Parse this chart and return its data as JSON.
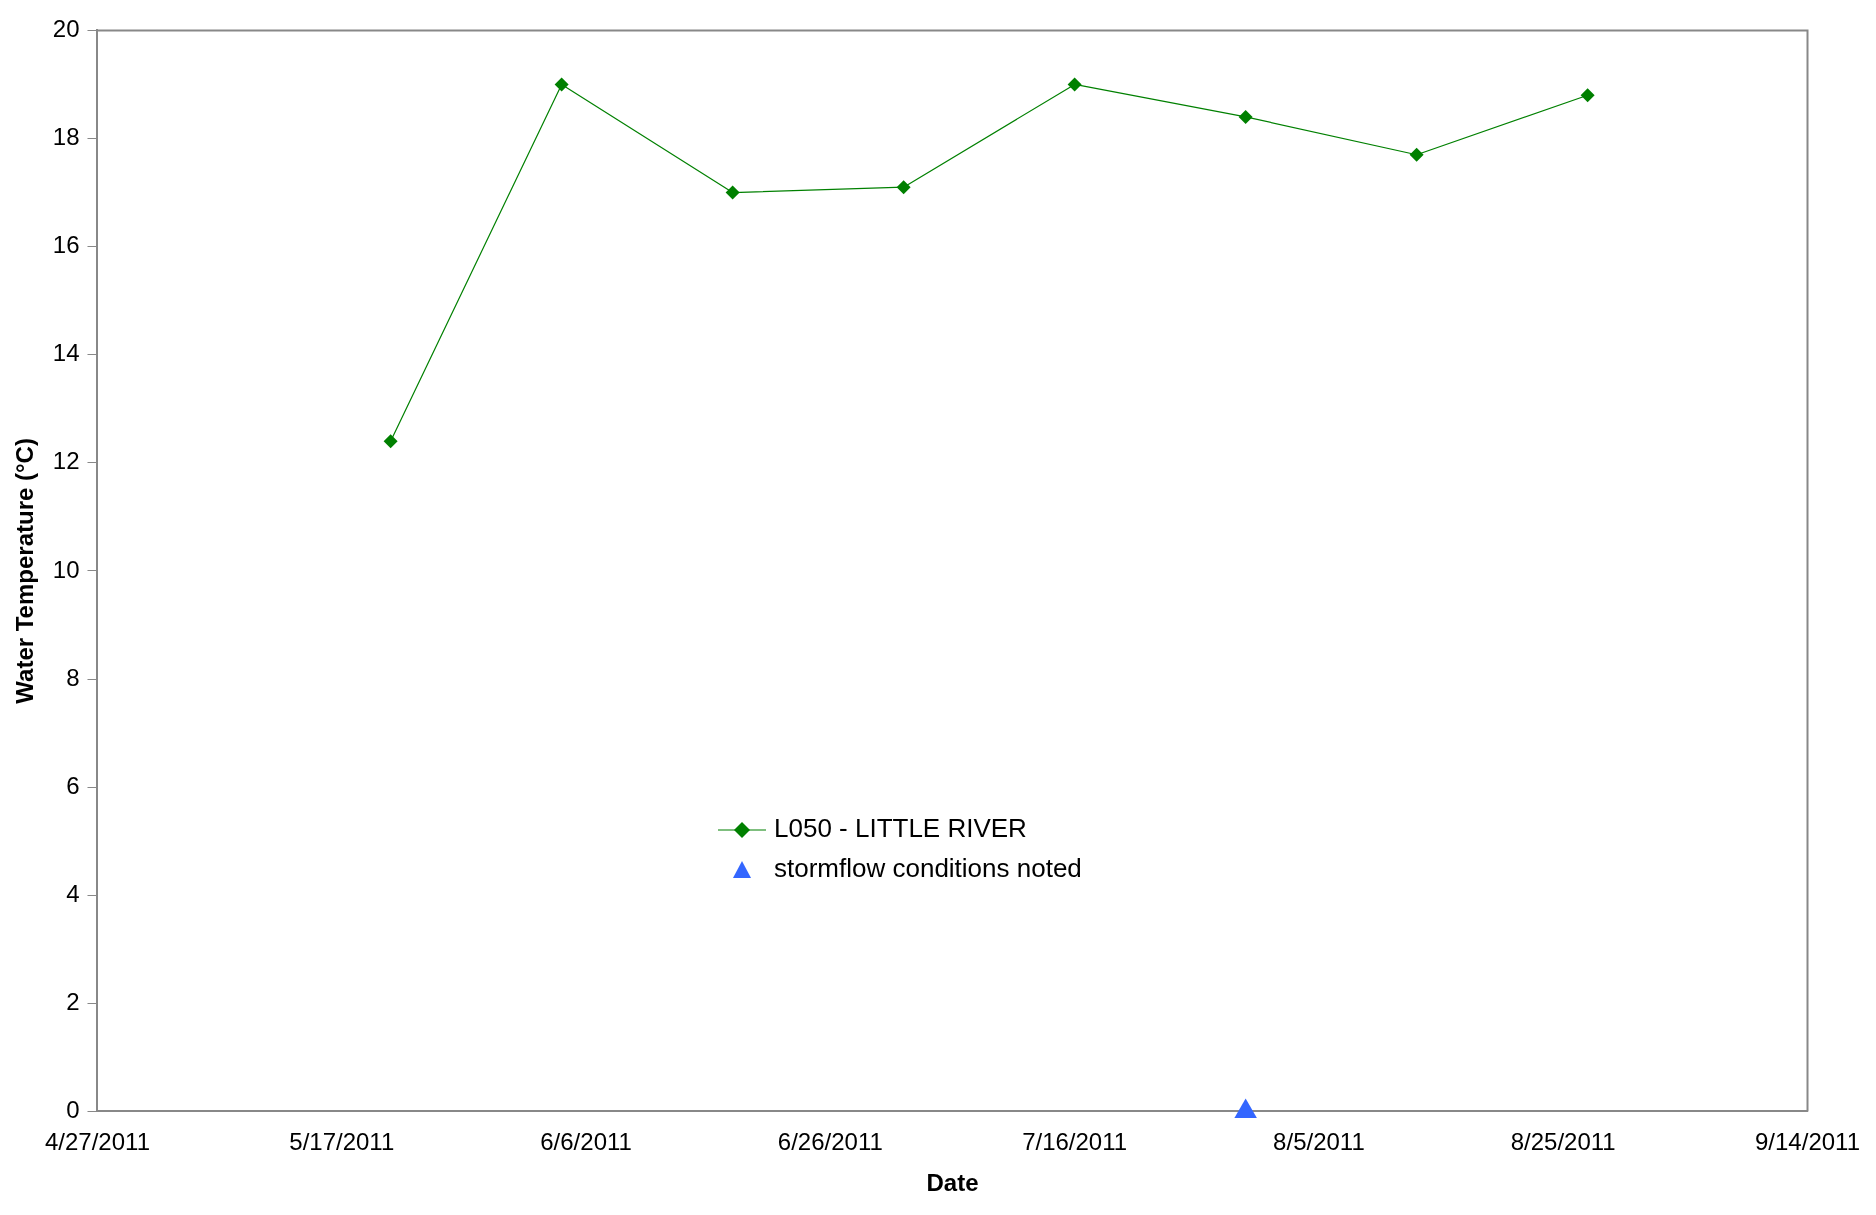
{
  "chart_data": {
    "type": "line",
    "xlabel": "Date",
    "ylabel": "Water Temperature (°C)",
    "xlim": [
      "2011-04-27",
      "2011-09-14"
    ],
    "xticks": [
      {
        "value": "2011-04-27",
        "label": "4/27/2011"
      },
      {
        "value": "2011-05-17",
        "label": "5/17/2011"
      },
      {
        "value": "2011-06-06",
        "label": "6/6/2011"
      },
      {
        "value": "2011-06-26",
        "label": "6/26/2011"
      },
      {
        "value": "2011-07-16",
        "label": "7/16/2011"
      },
      {
        "value": "2011-08-05",
        "label": "8/5/2011"
      },
      {
        "value": "2011-08-25",
        "label": "8/25/2011"
      },
      {
        "value": "2011-09-14",
        "label": "9/14/2011"
      }
    ],
    "ylim": [
      0,
      20
    ],
    "yticks": [
      0,
      2,
      4,
      6,
      8,
      10,
      12,
      14,
      16,
      18,
      20
    ],
    "grid": false,
    "legend": "center",
    "series": [
      {
        "name": "L050 - LITTLE RIVER",
        "type": "line",
        "color": "#008000",
        "marker": "diamond",
        "line_style": "solid",
        "x": [
          "2011-05-21",
          "2011-06-04",
          "2011-06-18",
          "2011-07-02",
          "2011-07-16",
          "2011-07-30",
          "2011-08-13",
          "2011-08-27"
        ],
        "values": [
          12.4,
          19,
          17,
          17.1,
          19,
          18.4,
          17.7,
          18.8
        ]
      },
      {
        "name": "stormflow conditions noted",
        "type": "scatter",
        "color": "#3366ff",
        "marker": "triangle",
        "x": [
          "2011-07-30"
        ],
        "values": [
          0
        ]
      }
    ]
  }
}
